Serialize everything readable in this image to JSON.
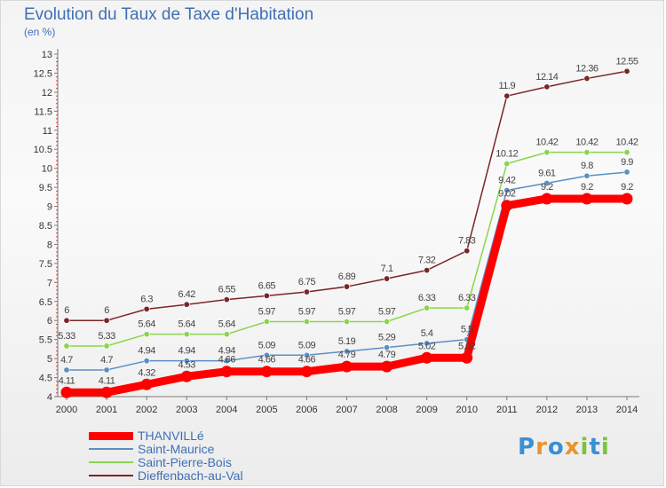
{
  "title": "Evolution du Taux de Taxe d'Habitation",
  "subtitle": "(en %)",
  "chart_data": {
    "type": "line",
    "title": "Evolution du Taux de Taxe d'Habitation",
    "ylabel": "(en %)",
    "x": [
      "2000",
      "2001",
      "2002",
      "2003",
      "2004",
      "2005",
      "2006",
      "2007",
      "2008",
      "2009",
      "2010",
      "2011",
      "2012",
      "2013",
      "2014"
    ],
    "ylim": [
      4,
      13
    ],
    "yticks": [
      "4",
      "4.5",
      "5",
      "5.5",
      "6",
      "6.5",
      "7",
      "7.5",
      "8",
      "8.5",
      "9",
      "9.5",
      "10",
      "10.5",
      "11",
      "11.5",
      "12",
      "12.5",
      "13"
    ],
    "grid": false,
    "legend_position": "bottom-left",
    "series": [
      {
        "name": "THANVILLé",
        "color": "#ff0000",
        "values": [
          4.11,
          4.11,
          4.32,
          4.53,
          4.66,
          4.66,
          4.66,
          4.79,
          4.79,
          5.02,
          5.02,
          9.02,
          9.2,
          9.2,
          9.2
        ],
        "labels": [
          "4.11",
          "4.11",
          "4.32",
          "4.53",
          "4.66",
          "4.66",
          "4.66",
          "4.79",
          "4.79",
          "5.02",
          "5.02",
          "9.02",
          "9.2",
          "9.2",
          "9.2"
        ]
      },
      {
        "name": "Saint-Maurice",
        "color": "#5b8fc4",
        "values": [
          4.7,
          4.7,
          4.94,
          4.94,
          4.94,
          5.09,
          5.09,
          5.19,
          5.29,
          5.4,
          5.5,
          9.42,
          9.61,
          9.8,
          9.9
        ],
        "labels": [
          "4.7",
          "4.7",
          "4.94",
          "4.94",
          "4.94",
          "5.09",
          "5.09",
          "5.19",
          "5.29",
          "5.4",
          "5.5",
          "9.42",
          "9.61",
          "9.8",
          "9.9"
        ]
      },
      {
        "name": "Saint-Pierre-Bois",
        "color": "#8cd44e",
        "values": [
          5.33,
          5.33,
          5.64,
          5.64,
          5.64,
          5.97,
          5.97,
          5.97,
          5.97,
          6.33,
          6.33,
          10.12,
          10.42,
          10.42,
          10.42
        ],
        "labels": [
          "5.33",
          "5.33",
          "5.64",
          "5.64",
          "5.64",
          "5.97",
          "5.97",
          "5.97",
          "5.97",
          "6.33",
          "6.33",
          "10.12",
          "10.42",
          "10.42",
          "10.42"
        ]
      },
      {
        "name": "Dieffenbach-au-Val",
        "color": "#7a2626",
        "values": [
          6,
          6,
          6.3,
          6.42,
          6.55,
          6.65,
          6.75,
          6.89,
          7.1,
          7.32,
          7.83,
          11.9,
          12.14,
          12.36,
          12.55
        ],
        "labels": [
          "6",
          "6",
          "6.3",
          "6.42",
          "6.55",
          "6.65",
          "6.75",
          "6.89",
          "7.1",
          "7.32",
          "7.83",
          "11.9",
          "12.14",
          "12.36",
          "12.55"
        ]
      }
    ]
  },
  "logo": {
    "letters": [
      "P",
      "r",
      "o",
      "x",
      "i",
      "t",
      "i"
    ],
    "colors": [
      "#3a8fd6",
      "#e8942a",
      "#3a8fd6",
      "#e8942a",
      "#7cc242",
      "#3a8fd6",
      "#7cc242"
    ]
  }
}
